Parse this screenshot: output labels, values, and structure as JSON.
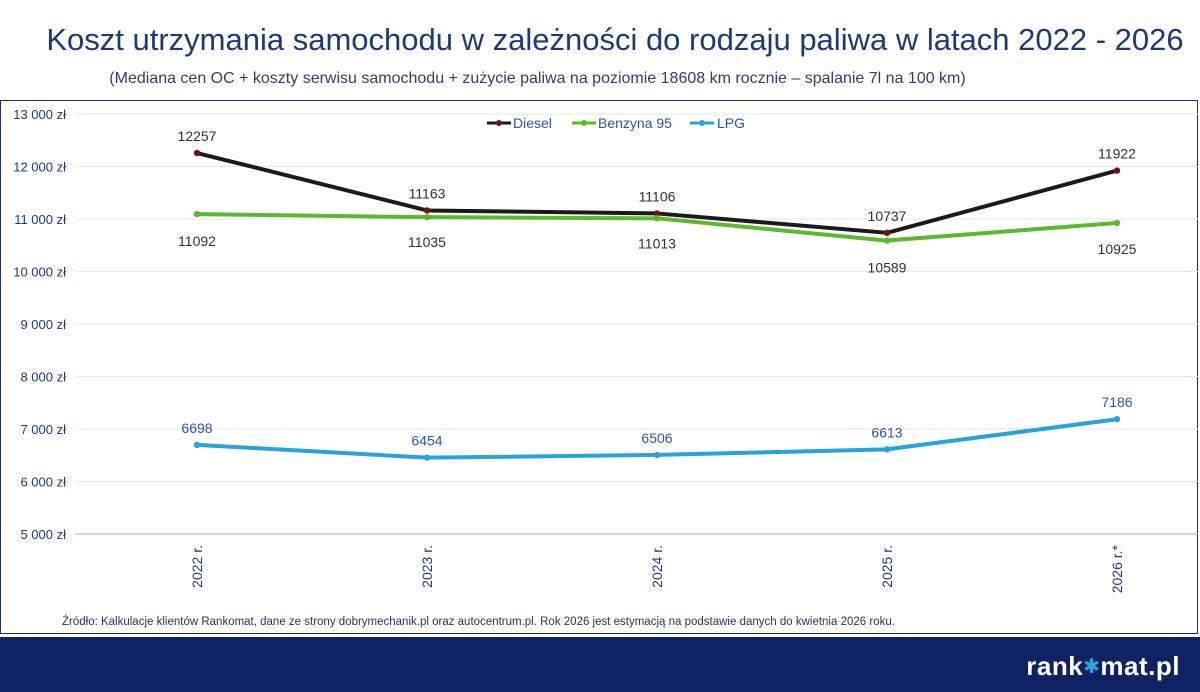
{
  "chart_data": {
    "type": "line",
    "title": "Koszt utrzymania samochodu w zależności do rodzaju paliwa w latach 2022 - 2026",
    "subtitle": "(Mediana cen OC + koszty serwisu samochodu + zużycie paliwa na poziomie 18608 km rocznie – spalanie 7l na 100 km)",
    "categories": [
      "2022 r.",
      "2023 r.",
      "2024 r.",
      "2025 r.",
      "2026 r.*"
    ],
    "series": [
      {
        "name": "Diesel",
        "values": [
          12257,
          11163,
          11106,
          10737,
          11922
        ],
        "labels": [
          "12257",
          "11163",
          "11106",
          "10737",
          "11922"
        ],
        "color": "#1a1a1a",
        "marker": "#7a1010",
        "label_color": "#2a2f45"
      },
      {
        "name": "Benzyna 95",
        "values": [
          11092,
          11035,
          11013,
          10589,
          10925
        ],
        "labels": [
          "11092",
          "11035",
          "11013",
          "10589",
          "10925"
        ],
        "color": "#5cb82e",
        "marker": "#5cb82e",
        "label_color": "#2a2f45"
      },
      {
        "name": "LPG",
        "values": [
          6698,
          6454,
          6506,
          6613,
          7186
        ],
        "labels": [
          "6698",
          "6454",
          "6506",
          "6613",
          "7186"
        ],
        "color": "#2aa3dc",
        "marker": "#2aa3dc",
        "label_color": "#2b55a6"
      }
    ],
    "ylim": [
      5000,
      13000
    ],
    "yticks": [
      5000,
      6000,
      7000,
      8000,
      9000,
      10000,
      11000,
      12000,
      13000
    ],
    "ytick_labels": [
      "5 000 zł",
      "6 000 zł",
      "7 000 zł",
      "8 000 zł",
      "9 000 zł",
      "10 000 zł",
      "11 000 zł",
      "12 000 zł",
      "13 000 zł"
    ],
    "grid": true,
    "legend_position": "top-center"
  },
  "source": "Źródło: Kalkulacje klientów Rankomat, dane ze strony dobrymechanik.pl oraz autocentrum.pl. Rok 2026 jest estymacją na podstawie danych do kwietnia 2026 roku.",
  "brand": {
    "prefix": "rank",
    "suffix": "mat.pl"
  }
}
